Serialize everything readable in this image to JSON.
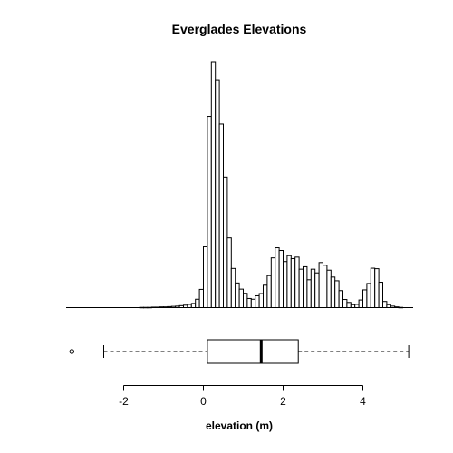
{
  "chart_data": {
    "type": "histogram",
    "title": "Everglades Elevations",
    "xlabel": "elevation (m)",
    "ylabel": "",
    "xlim": [
      -3.5,
      5.1
    ],
    "x_ticks": [
      -2,
      0,
      2,
      4
    ],
    "x_tick_labels": [
      "-2",
      "0",
      "2",
      "4"
    ],
    "bin_width": 0.1,
    "bins_start": -3.4,
    "counts": [
      0,
      0,
      0,
      0,
      0,
      0,
      0,
      0,
      0,
      0,
      0,
      0,
      0,
      0,
      0,
      0,
      0,
      0,
      1,
      1,
      1,
      2,
      2,
      3,
      3,
      4,
      5,
      6,
      8,
      10,
      13,
      17,
      34,
      74,
      247,
      777,
      1000,
      926,
      746,
      531,
      283,
      159,
      100,
      75,
      58,
      37,
      34,
      48,
      57,
      91,
      130,
      202,
      243,
      232,
      187,
      211,
      199,
      205,
      156,
      166,
      113,
      156,
      141,
      183,
      172,
      152,
      124,
      109,
      69,
      33,
      21,
      12,
      13,
      31,
      72,
      98,
      160,
      158,
      103,
      25,
      12,
      6,
      3,
      1,
      0,
      0
    ],
    "boxplot": {
      "whisker_low": -2.5,
      "q1": 0.1,
      "median": 1.45,
      "q3": 2.38,
      "whisker_high": 5.15,
      "outliers": [
        -3.3
      ]
    },
    "grid": false,
    "legend": "none"
  }
}
